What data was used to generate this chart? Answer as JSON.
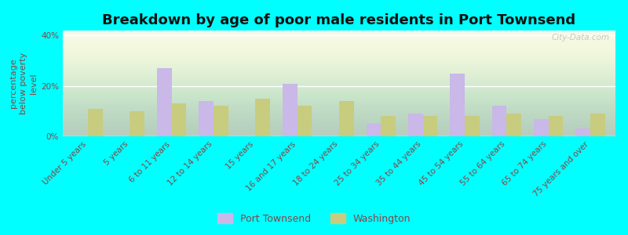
{
  "title": "Breakdown by age of poor male residents in Port Townsend",
  "ylabel": "percentage\nbelow poverty\nlevel",
  "categories": [
    "Under 5 years",
    "5 years",
    "6 to 11 years",
    "12 to 14 years",
    "15 years",
    "16 and 17 years",
    "18 to 24 years",
    "25 to 34 years",
    "35 to 44 years",
    "45 to 54 years",
    "55 to 64 years",
    "65 to 74 years",
    "75 years and over"
  ],
  "port_townsend": [
    0,
    0,
    27,
    14,
    0,
    21,
    0,
    5,
    9,
    25,
    12,
    7,
    3
  ],
  "washington": [
    11,
    10,
    13,
    12,
    15,
    12,
    14,
    8,
    8,
    8,
    9,
    8,
    9
  ],
  "pt_color": "#c9b8e8",
  "wa_color": "#c8cc7e",
  "bg_color": "#00ffff",
  "ylim": [
    0,
    42
  ],
  "yticks": [
    0,
    20,
    40
  ],
  "ytick_labels": [
    "0%",
    "20%",
    "40%"
  ],
  "title_fontsize": 13,
  "axis_label_fontsize": 8,
  "tick_label_fontsize": 7.5,
  "legend_fontsize": 9,
  "bar_width": 0.35,
  "watermark": "City-Data.com"
}
